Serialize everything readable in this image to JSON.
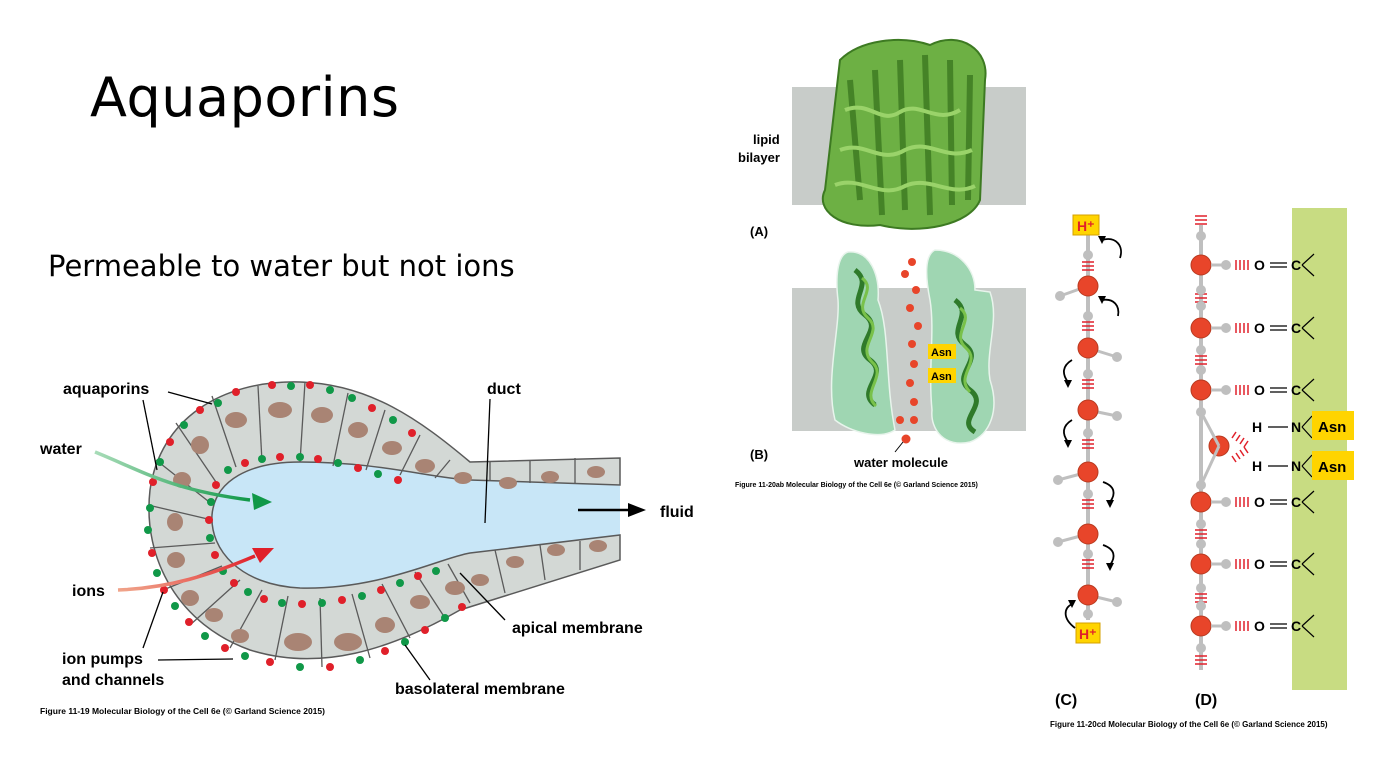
{
  "slide": {
    "title": "Aquaporins",
    "subtitle": "Permeable to water but not ions"
  },
  "fig_11_19": {
    "labels": {
      "aquaporins": "aquaporins",
      "water": "water",
      "duct": "duct",
      "fluid": "fluid",
      "ions": "ions",
      "apical_membrane": "apical membrane",
      "ion_pumps_line1": "ion pumps",
      "ion_pumps_line2": "and channels",
      "basolateral_membrane": "basolateral membrane"
    },
    "caption": "Figure 11-19  Molecular Biology of the Cell 6e (© Garland Science 2015)",
    "colors": {
      "cell": "#d3d8d5",
      "nucleus": "#a98474",
      "lumen": "#c8e6f7",
      "pump_red": "#e0202a",
      "aquaporin_green": "#109848"
    }
  },
  "fig_11_20ab": {
    "lipid_line1": "lipid",
    "lipid_line2": "bilayer",
    "panel_a": "(A)",
    "panel_b": "(B)",
    "asn1": "Asn",
    "asn2": "Asn",
    "water_molecule": "water molecule",
    "caption": "Figure 11-20ab  Molecular Biology of the Cell 6e (© Garland Science 2015)",
    "colors": {
      "bilayer": "#c8ccc9",
      "protein": "#5aa43a",
      "channel": "#9fd6b2",
      "asn_box": "#ffd400"
    }
  },
  "fig_11_20cd": {
    "hplus_top": "H⁺",
    "hplus_bottom": "H⁺",
    "panel_c": "(C)",
    "panel_d": "(D)",
    "oxygen": "O",
    "carbon": "C",
    "hydrogen": "H",
    "nitrogen": "N",
    "asn1": "Asn",
    "asn2": "Asn",
    "caption": "Figure 11-20cd  Molecular Biology of the Cell 6e (© Garland Science 2015)",
    "colors": {
      "wall": "#c8dc82",
      "oxygen": "#e8452a",
      "hydrogen": "#bfbfbf",
      "asn_box": "#ffd400",
      "hplus_red": "#e0202a"
    }
  }
}
